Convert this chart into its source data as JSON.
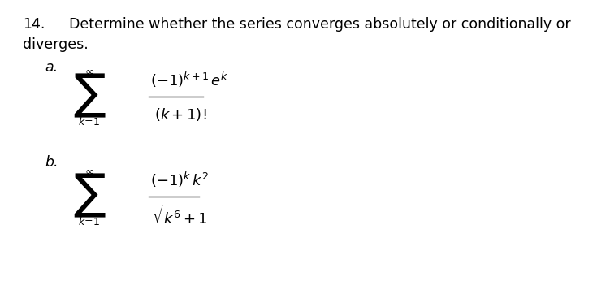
{
  "background_color": "#ffffff",
  "fig_width": 7.35,
  "fig_height": 3.46,
  "dpi": 100,
  "number_text": "14.",
  "title_text": "Determine whether the series converges absolutely or conditionally or",
  "title2_text": "diverges.",
  "label_a": "a.",
  "label_b": "b.",
  "text_color": "#000000",
  "font_size_main": 12.5,
  "font_size_label": 12.5,
  "font_size_formula": 13
}
